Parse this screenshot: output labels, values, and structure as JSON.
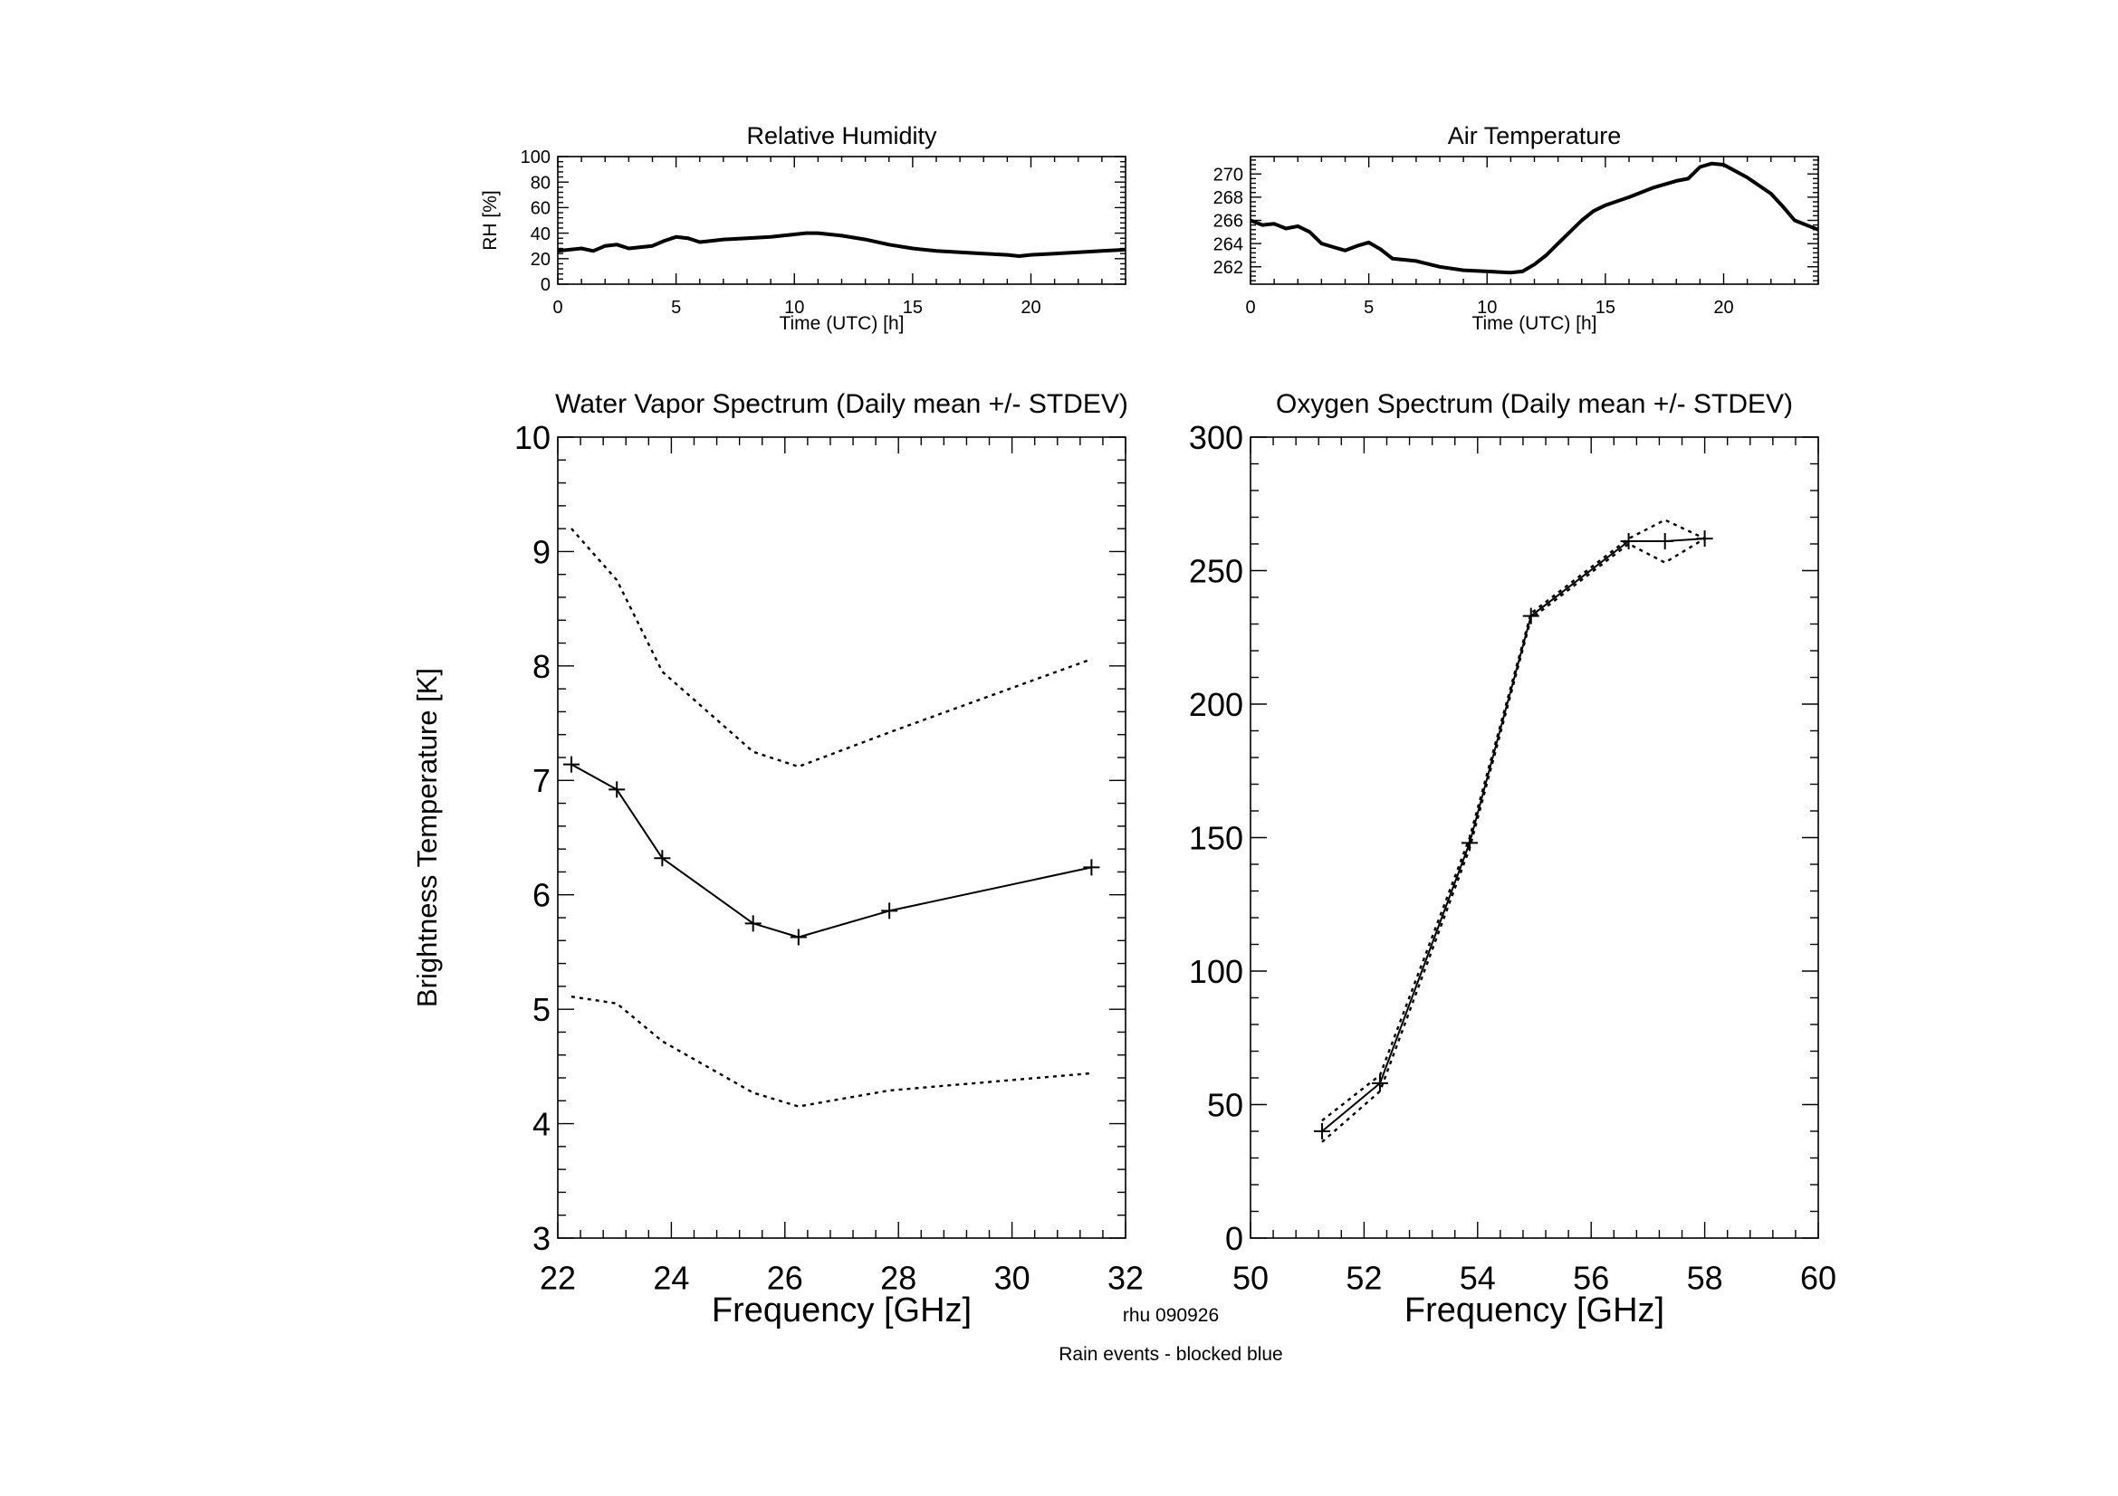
{
  "footer": {
    "station_code": "rhu 090926",
    "rain_note": "Rain events - blocked blue",
    "rain_note_color": "#00ffff"
  },
  "chart_data": [
    {
      "id": "rh",
      "type": "line",
      "title": "Relative Humidity",
      "xlabel": "Time (UTC) [h]",
      "ylabel": "RH [%]",
      "xlim": [
        0,
        24
      ],
      "ylim": [
        0,
        100
      ],
      "xticks": [
        0,
        5,
        10,
        15,
        20
      ],
      "yticks": [
        0,
        20,
        40,
        60,
        80,
        100
      ],
      "grid": false,
      "series": [
        {
          "style": "solid-thick",
          "x": [
            0,
            1,
            1.5,
            2,
            2.5,
            3,
            3.5,
            4,
            4.5,
            5,
            5.5,
            6,
            6.5,
            7,
            8,
            9,
            10,
            10.5,
            11,
            12,
            13,
            14,
            15,
            16,
            17,
            18,
            19,
            19.5,
            20,
            21,
            22,
            23,
            24
          ],
          "y": [
            26,
            28,
            26,
            30,
            31,
            28,
            29,
            30,
            34,
            37,
            36,
            33,
            34,
            35,
            36,
            37,
            39,
            40,
            40,
            38,
            35,
            31,
            28,
            26,
            25,
            24,
            23,
            22,
            23,
            24,
            25,
            26,
            27
          ]
        }
      ]
    },
    {
      "id": "airtemp",
      "type": "line",
      "title": "Air Temperature",
      "xlabel": "Time (UTC) [h]",
      "ylabel": "",
      "xlim": [
        0,
        24
      ],
      "ylim": [
        260.5,
        271.5
      ],
      "xticks": [
        0,
        5,
        10,
        15,
        20
      ],
      "yticks": [
        262,
        264,
        266,
        268,
        270
      ],
      "grid": false,
      "series": [
        {
          "style": "solid-thick",
          "x": [
            0,
            0.5,
            1,
            1.5,
            2,
            2.5,
            3,
            3.5,
            4,
            4.5,
            5,
            5.5,
            6,
            7,
            8,
            9,
            10,
            11,
            11.5,
            12,
            12.5,
            13,
            13.5,
            14,
            14.5,
            15,
            16,
            17,
            18,
            18.5,
            19,
            19.5,
            20,
            21,
            22,
            22.5,
            23,
            24
          ],
          "y": [
            266,
            265.6,
            265.7,
            265.3,
            265.5,
            265,
            264,
            263.7,
            263.4,
            263.8,
            264.1,
            263.5,
            262.7,
            262.5,
            262.0,
            261.7,
            261.6,
            261.5,
            261.6,
            262.2,
            263.0,
            264.0,
            265.0,
            266.0,
            266.8,
            267.3,
            268.0,
            268.8,
            269.4,
            269.6,
            270.6,
            270.9,
            270.8,
            269.7,
            268.3,
            267.2,
            266.0,
            265.2
          ]
        }
      ]
    },
    {
      "id": "wv",
      "type": "line",
      "title": "Water Vapor Spectrum (Daily mean +/- STDEV)",
      "xlabel": "Frequency [GHz]",
      "ylabel": "Brightness Temperature [K]",
      "xlim": [
        22,
        32
      ],
      "ylim": [
        3,
        10
      ],
      "xticks": [
        22,
        24,
        26,
        28,
        30,
        32
      ],
      "yticks": [
        3,
        4,
        5,
        6,
        7,
        8,
        9,
        10
      ],
      "grid": false,
      "series": [
        {
          "style": "solid-markers",
          "x": [
            22.24,
            23.04,
            23.84,
            25.44,
            26.24,
            27.84,
            31.4
          ],
          "y": [
            7.14,
            6.92,
            6.32,
            5.75,
            5.63,
            5.86,
            6.24
          ]
        },
        {
          "style": "dotted",
          "x": [
            22.24,
            23.04,
            23.84,
            25.44,
            26.24,
            27.84,
            31.4
          ],
          "y": [
            9.2,
            8.75,
            7.95,
            7.25,
            7.12,
            7.42,
            8.06
          ]
        },
        {
          "style": "dotted",
          "x": [
            22.24,
            23.04,
            23.84,
            25.44,
            26.24,
            27.84,
            31.4
          ],
          "y": [
            5.11,
            5.05,
            4.72,
            4.27,
            4.15,
            4.29,
            4.44
          ]
        }
      ]
    },
    {
      "id": "ox",
      "type": "line",
      "title": "Oxygen Spectrum (Daily mean +/- STDEV)",
      "xlabel": "Frequency [GHz]",
      "ylabel": "",
      "xlim": [
        50,
        60
      ],
      "ylim": [
        0,
        300
      ],
      "xticks": [
        50,
        52,
        54,
        56,
        58,
        60
      ],
      "yticks": [
        0,
        50,
        100,
        150,
        200,
        250,
        300
      ],
      "grid": false,
      "series": [
        {
          "style": "solid-markers",
          "x": [
            51.26,
            52.28,
            53.86,
            54.94,
            56.66,
            57.3,
            58.0
          ],
          "y": [
            40,
            58,
            148,
            233,
            261,
            261,
            262
          ]
        },
        {
          "style": "dotted",
          "x": [
            51.26,
            52.28,
            53.86,
            54.94,
            56.66,
            57.3,
            58.0
          ],
          "y": [
            44,
            61,
            150,
            234,
            262,
            269,
            262
          ]
        },
        {
          "style": "dotted",
          "x": [
            51.26,
            52.28,
            53.86,
            54.94,
            56.66,
            57.3,
            58.0
          ],
          "y": [
            36,
            55,
            146,
            232,
            260,
            253,
            262
          ]
        }
      ]
    }
  ]
}
